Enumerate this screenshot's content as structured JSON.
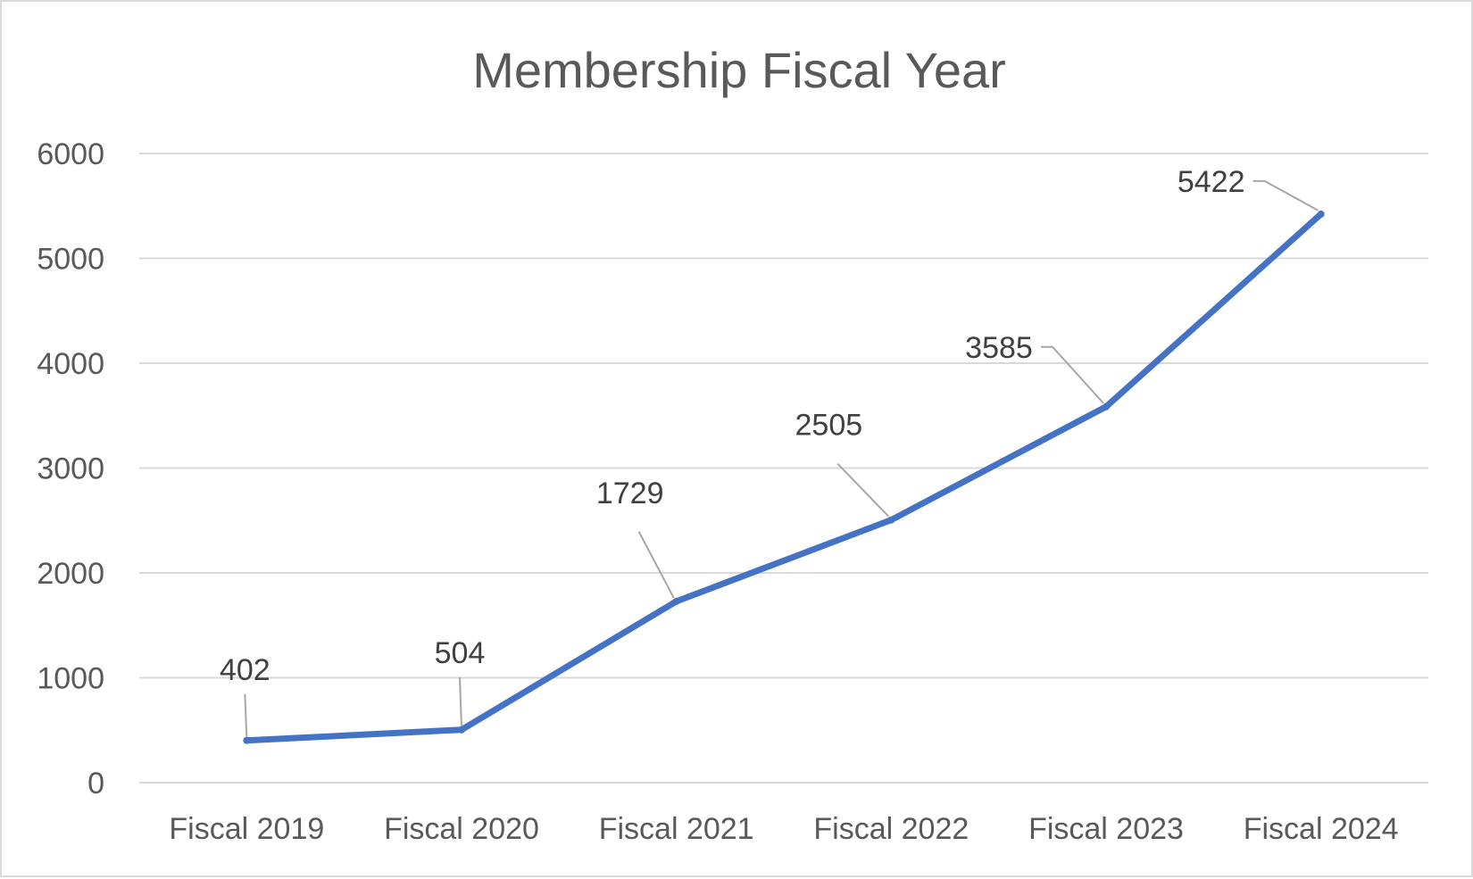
{
  "chart_data": {
    "type": "line",
    "title": "Membership Fiscal Year",
    "xlabel": "",
    "ylabel": "",
    "categories": [
      "Fiscal 2019",
      "Fiscal 2020",
      "Fiscal 2021",
      "Fiscal 2022",
      "Fiscal 2023",
      "Fiscal 2024"
    ],
    "series": [
      {
        "values": [
          402,
          504,
          1729,
          2505,
          3585,
          5422
        ],
        "color": "#4472c4"
      }
    ],
    "ylim": [
      0,
      6000
    ],
    "yticks": [
      0,
      1000,
      2000,
      3000,
      4000,
      5000,
      6000
    ],
    "grid": true,
    "data_labels": true,
    "legend": "none"
  }
}
